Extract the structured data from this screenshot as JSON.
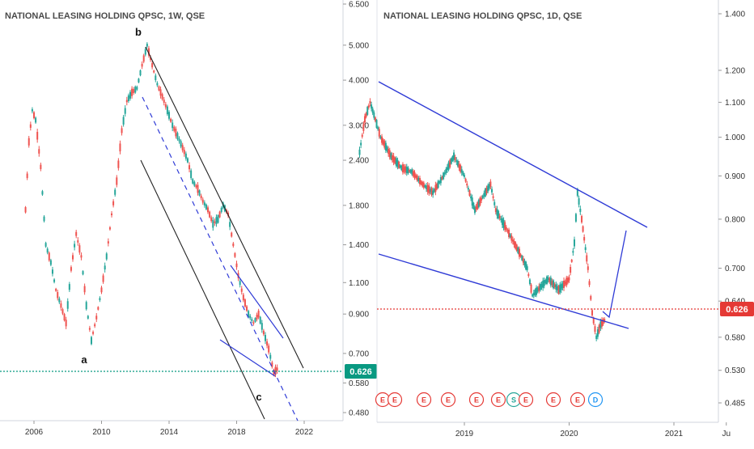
{
  "chart_data": [
    {
      "type": "line",
      "title": "NATIONAL LEASING HOLDING QPSC, 1W, QSE",
      "x_ticks": [
        "2006",
        "2010",
        "2014",
        "2018",
        "2022"
      ],
      "y_ticks": [
        "6.500",
        "5.000",
        "4.000",
        "3.000",
        "2.400",
        "1.800",
        "1.400",
        "1.100",
        "0.900",
        "0.700",
        "0.580",
        "0.480"
      ],
      "y_scale": "log",
      "price_label": "0.626",
      "price_line_color": "#089981",
      "wave_labels": [
        "a",
        "b",
        "c"
      ],
      "series": [
        {
          "values": [
            [
              2005.5,
              1.75
            ],
            [
              2005.7,
              2.7
            ],
            [
              2005.9,
              3.3
            ],
            [
              2006.1,
              3.1
            ],
            [
              2006.4,
              2.3
            ],
            [
              2006.7,
              1.4
            ],
            [
              2007.0,
              1.25
            ],
            [
              2007.3,
              1.05
            ],
            [
              2007.6,
              0.95
            ],
            [
              2007.9,
              0.85
            ],
            [
              2008.2,
              1.2
            ],
            [
              2008.5,
              1.5
            ],
            [
              2008.8,
              1.3
            ],
            [
              2009.1,
              0.95
            ],
            [
              2009.4,
              0.76
            ],
            [
              2009.7,
              0.88
            ],
            [
              2010.0,
              1.05
            ],
            [
              2010.3,
              1.3
            ],
            [
              2010.6,
              1.7
            ],
            [
              2010.9,
              2.1
            ],
            [
              2011.2,
              2.9
            ],
            [
              2011.5,
              3.5
            ],
            [
              2011.8,
              3.7
            ],
            [
              2012.1,
              3.8
            ],
            [
              2012.4,
              4.4
            ],
            [
              2012.7,
              5.0
            ],
            [
              2013.0,
              4.4
            ],
            [
              2013.3,
              3.9
            ],
            [
              2013.6,
              3.6
            ],
            [
              2013.9,
              3.3
            ],
            [
              2014.2,
              3.0
            ],
            [
              2014.5,
              2.8
            ],
            [
              2014.8,
              2.6
            ],
            [
              2015.1,
              2.4
            ],
            [
              2015.4,
              2.1
            ],
            [
              2015.7,
              2.0
            ],
            [
              2016.0,
              1.85
            ],
            [
              2016.3,
              1.75
            ],
            [
              2016.6,
              1.6
            ],
            [
              2016.9,
              1.65
            ],
            [
              2017.2,
              1.8
            ],
            [
              2017.5,
              1.7
            ],
            [
              2017.8,
              1.4
            ],
            [
              2018.1,
              1.15
            ],
            [
              2018.4,
              1.0
            ],
            [
              2018.7,
              0.9
            ],
            [
              2019.0,
              0.85
            ],
            [
              2019.3,
              0.9
            ],
            [
              2019.6,
              0.8
            ],
            [
              2019.9,
              0.72
            ],
            [
              2020.2,
              0.62
            ],
            [
              2020.5,
              0.64
            ]
          ]
        }
      ]
    },
    {
      "type": "line",
      "title": "NATIONAL LEASING HOLDING QPSC, 1D, QSE",
      "x_ticks": [
        "2019",
        "2020",
        "2021",
        "Ju"
      ],
      "y_ticks": [
        "1.400",
        "1.200",
        "1.100",
        "1.000",
        "0.900",
        "0.800",
        "0.700",
        "0.640",
        "0.580",
        "0.530",
        "0.485"
      ],
      "y_scale": "log",
      "price_label": "0.626",
      "price_line_color": "#e53935",
      "event_markers": [
        "E",
        "E",
        "E",
        "E",
        "E",
        "E",
        "S",
        "E",
        "E",
        "E",
        "D"
      ],
      "series": [
        {
          "values": [
            [
              2018.0,
              0.96
            ],
            [
              2018.05,
              1.05
            ],
            [
              2018.1,
              1.1
            ],
            [
              2018.15,
              1.05
            ],
            [
              2018.2,
              1.0
            ],
            [
              2018.3,
              0.95
            ],
            [
              2018.4,
              0.92
            ],
            [
              2018.5,
              0.91
            ],
            [
              2018.6,
              0.88
            ],
            [
              2018.7,
              0.86
            ],
            [
              2018.8,
              0.9
            ],
            [
              2018.9,
              0.95
            ],
            [
              2019.0,
              0.9
            ],
            [
              2019.1,
              0.82
            ],
            [
              2019.2,
              0.86
            ],
            [
              2019.25,
              0.88
            ],
            [
              2019.3,
              0.82
            ],
            [
              2019.4,
              0.78
            ],
            [
              2019.5,
              0.74
            ],
            [
              2019.6,
              0.7
            ],
            [
              2019.65,
              0.65
            ],
            [
              2019.7,
              0.66
            ],
            [
              2019.8,
              0.68
            ],
            [
              2019.9,
              0.66
            ],
            [
              2020.0,
              0.68
            ],
            [
              2020.05,
              0.75
            ],
            [
              2020.08,
              0.86
            ],
            [
              2020.12,
              0.8
            ],
            [
              2020.18,
              0.7
            ],
            [
              2020.22,
              0.62
            ],
            [
              2020.26,
              0.58
            ],
            [
              2020.3,
              0.6
            ],
            [
              2020.35,
              0.61
            ]
          ]
        }
      ]
    }
  ]
}
